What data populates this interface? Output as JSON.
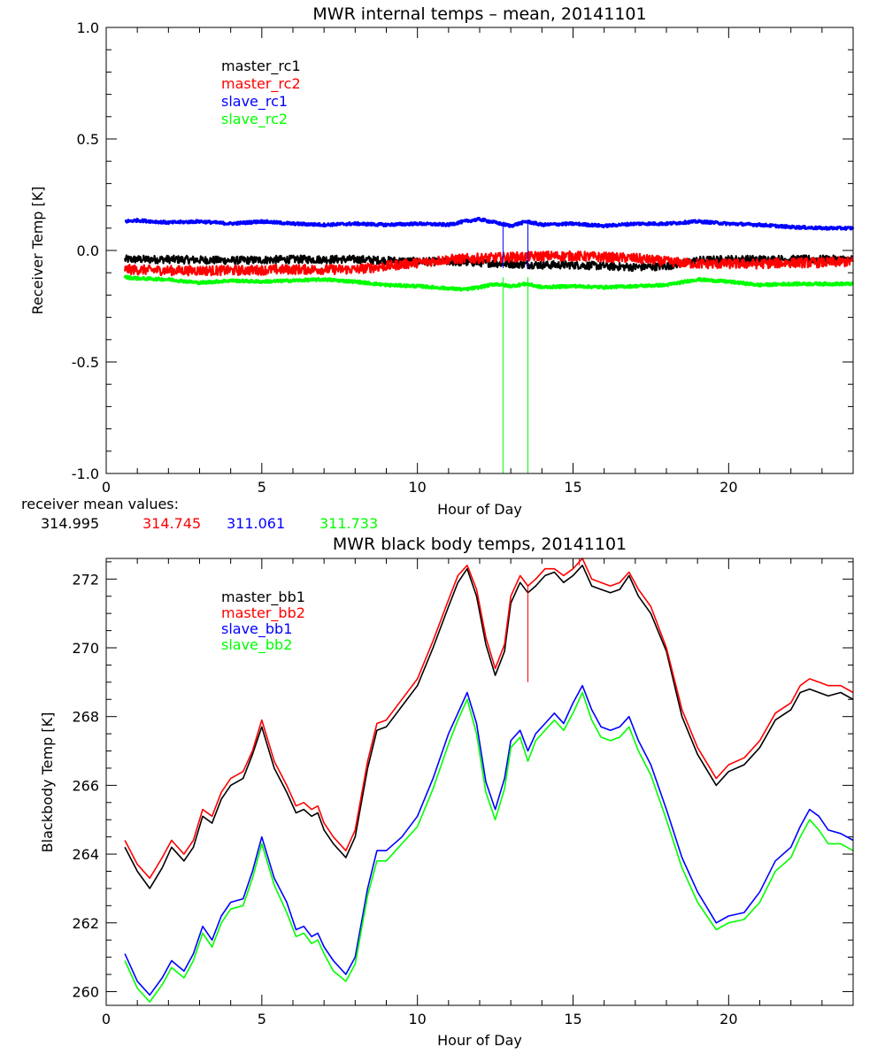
{
  "chart_data": [
    {
      "type": "line",
      "title": "MWR internal temps – mean, 20141101",
      "xlabel": "Hour of Day",
      "ylabel": "Receiver Temp [K]",
      "xlim": [
        0,
        24
      ],
      "ylim": [
        -1.0,
        1.0
      ],
      "xticks": [
        0,
        5,
        10,
        15,
        20
      ],
      "xtick_labels": [
        "0",
        "5",
        "10",
        "15",
        "20"
      ],
      "yticks": [
        -1.0,
        -0.5,
        0.0,
        0.5,
        1.0
      ],
      "ytick_labels": [
        "-1.0",
        "-0.5",
        "0.0",
        "0.5",
        "1.0"
      ],
      "legend_position": "top-left",
      "series": [
        {
          "name": "master_rc1",
          "color": "#000000",
          "noise": 0.018,
          "spikes": [],
          "x": [
            0.6,
            2,
            4,
            6,
            8,
            9,
            10,
            11,
            12,
            13,
            14,
            15,
            16,
            17,
            18,
            19,
            20,
            21,
            22,
            23,
            24
          ],
          "y": [
            -0.04,
            -0.04,
            -0.045,
            -0.04,
            -0.04,
            -0.045,
            -0.05,
            -0.05,
            -0.055,
            -0.06,
            -0.065,
            -0.065,
            -0.07,
            -0.075,
            -0.07,
            -0.045,
            -0.04,
            -0.04,
            -0.04,
            -0.04,
            -0.04
          ]
        },
        {
          "name": "master_rc2",
          "color": "#ff0000",
          "noise": 0.022,
          "spikes": [],
          "x": [
            0.6,
            2,
            4,
            6,
            8,
            9,
            10,
            11,
            12,
            13,
            14,
            15,
            16,
            17,
            18,
            19,
            20,
            21,
            22,
            23,
            24
          ],
          "y": [
            -0.085,
            -0.09,
            -0.09,
            -0.085,
            -0.085,
            -0.07,
            -0.055,
            -0.04,
            -0.035,
            -0.03,
            -0.025,
            -0.025,
            -0.03,
            -0.035,
            -0.05,
            -0.06,
            -0.06,
            -0.06,
            -0.055,
            -0.055,
            -0.05
          ]
        },
        {
          "name": "slave_rc1",
          "color": "#0000ff",
          "noise": 0.006,
          "spikes": [
            12.75,
            13.55
          ],
          "x": [
            0.6,
            1,
            2,
            3,
            4,
            5,
            6,
            7,
            8,
            9,
            10,
            11,
            11.5,
            12,
            12.5,
            13,
            13.5,
            14,
            15,
            16,
            17,
            18,
            19,
            20,
            21,
            22,
            23,
            24
          ],
          "y": [
            0.13,
            0.135,
            0.125,
            0.13,
            0.12,
            0.13,
            0.12,
            0.115,
            0.12,
            0.115,
            0.12,
            0.115,
            0.13,
            0.14,
            0.125,
            0.11,
            0.13,
            0.115,
            0.12,
            0.11,
            0.12,
            0.12,
            0.13,
            0.12,
            0.115,
            0.105,
            0.1,
            0.1
          ]
        },
        {
          "name": "slave_rc2",
          "color": "#00ff00",
          "noise": 0.006,
          "spikes": [
            12.75,
            13.55
          ],
          "x": [
            0.6,
            1,
            2,
            3,
            4,
            5,
            6,
            7,
            8,
            9,
            10,
            11,
            11.5,
            12,
            12.5,
            13,
            13.5,
            14,
            15,
            16,
            17,
            18,
            19,
            20,
            21,
            22,
            23,
            24
          ],
          "y": [
            -0.12,
            -0.125,
            -0.13,
            -0.145,
            -0.135,
            -0.14,
            -0.135,
            -0.13,
            -0.14,
            -0.155,
            -0.16,
            -0.17,
            -0.175,
            -0.165,
            -0.15,
            -0.16,
            -0.15,
            -0.165,
            -0.16,
            -0.165,
            -0.16,
            -0.155,
            -0.13,
            -0.14,
            -0.155,
            -0.15,
            -0.15,
            -0.15
          ]
        }
      ],
      "annotations": {
        "label": "receiver mean values:",
        "values": [
          {
            "text": "314.995",
            "color": "#000000"
          },
          {
            "text": "314.745",
            "color": "#ff0000"
          },
          {
            "text": "311.061",
            "color": "#0000ff"
          },
          {
            "text": "311.733",
            "color": "#00ff00"
          }
        ]
      }
    },
    {
      "type": "line",
      "title": "MWR black body temps, 20141101",
      "xlabel": "Hour of Day",
      "ylabel": "Blackbody Temp [K]",
      "xlim": [
        0,
        24
      ],
      "ylim": [
        259.6,
        272.6
      ],
      "xticks": [
        0,
        5,
        10,
        15,
        20
      ],
      "xtick_labels": [
        "0",
        "5",
        "10",
        "15",
        "20"
      ],
      "yticks": [
        260,
        262,
        264,
        266,
        268,
        270,
        272
      ],
      "ytick_labels": [
        "260",
        "262",
        "264",
        "266",
        "268",
        "270",
        "272"
      ],
      "legend_position": "top-left",
      "x": [
        0.6,
        1.0,
        1.4,
        1.8,
        2.1,
        2.5,
        2.8,
        3.1,
        3.4,
        3.7,
        4.0,
        4.4,
        4.7,
        5.0,
        5.4,
        5.8,
        6.1,
        6.35,
        6.6,
        6.8,
        7.0,
        7.3,
        7.7,
        8.0,
        8.4,
        8.7,
        9.0,
        9.5,
        10.0,
        10.5,
        11.0,
        11.3,
        11.6,
        11.9,
        12.2,
        12.5,
        12.8,
        13.0,
        13.3,
        13.55,
        13.8,
        14.1,
        14.4,
        14.7,
        15.0,
        15.3,
        15.6,
        15.9,
        16.2,
        16.5,
        16.8,
        17.1,
        17.5,
        18.0,
        18.5,
        19.0,
        19.6,
        20.0,
        20.5,
        21.0,
        21.5,
        22.0,
        22.3,
        22.6,
        22.9,
        23.2,
        23.6,
        24.0
      ],
      "series": [
        {
          "name": "master_bb1",
          "color": "#000000",
          "spikes": [],
          "y": [
            264.2,
            263.5,
            263.0,
            263.6,
            264.2,
            263.8,
            264.2,
            265.1,
            264.9,
            265.6,
            266.0,
            266.2,
            266.9,
            267.7,
            266.5,
            265.8,
            265.2,
            265.3,
            265.1,
            265.2,
            264.7,
            264.3,
            263.9,
            264.5,
            266.5,
            267.6,
            267.7,
            268.3,
            268.9,
            270.0,
            271.2,
            271.9,
            272.3,
            271.5,
            270.1,
            269.2,
            269.9,
            271.3,
            271.9,
            271.6,
            271.8,
            272.1,
            272.2,
            271.9,
            272.1,
            272.4,
            271.8,
            271.7,
            271.6,
            271.7,
            272.1,
            271.5,
            271.0,
            269.9,
            268.0,
            266.9,
            266.0,
            266.4,
            266.6,
            267.1,
            267.9,
            268.2,
            268.7,
            268.8,
            268.7,
            268.6,
            268.7,
            268.5
          ]
        },
        {
          "name": "master_bb2",
          "color": "#ff0000",
          "spikes": [
            [
              13.55,
              269.0,
              271.8
            ],
            [
              15.2,
              272.4,
              272.6
            ]
          ],
          "y": [
            264.4,
            263.7,
            263.3,
            263.9,
            264.4,
            264.0,
            264.4,
            265.3,
            265.1,
            265.8,
            266.2,
            266.4,
            267.0,
            267.9,
            266.7,
            266.0,
            265.4,
            265.5,
            265.3,
            265.4,
            264.9,
            264.5,
            264.1,
            264.7,
            266.7,
            267.8,
            267.9,
            268.5,
            269.1,
            270.2,
            271.4,
            272.1,
            272.4,
            271.7,
            270.3,
            269.4,
            270.1,
            271.5,
            272.1,
            271.8,
            272.0,
            272.3,
            272.3,
            272.1,
            272.3,
            272.6,
            272.0,
            271.9,
            271.8,
            271.9,
            272.2,
            271.7,
            271.2,
            270.0,
            268.2,
            267.1,
            266.2,
            266.6,
            266.8,
            267.3,
            268.1,
            268.4,
            268.9,
            269.1,
            269.0,
            268.9,
            268.9,
            268.7
          ]
        },
        {
          "name": "slave_bb1",
          "color": "#0000ff",
          "spikes": [],
          "y": [
            261.1,
            260.3,
            259.9,
            260.4,
            260.9,
            260.6,
            261.1,
            261.9,
            261.5,
            262.2,
            262.6,
            262.7,
            263.5,
            264.5,
            263.3,
            262.6,
            261.8,
            261.9,
            261.6,
            261.7,
            261.3,
            260.9,
            260.5,
            261.0,
            263.0,
            264.1,
            264.1,
            264.5,
            265.1,
            266.2,
            267.5,
            268.1,
            268.7,
            267.8,
            266.1,
            265.3,
            266.2,
            267.3,
            267.6,
            267.0,
            267.5,
            267.8,
            268.1,
            267.8,
            268.4,
            268.9,
            268.2,
            267.7,
            267.6,
            267.7,
            268.0,
            267.3,
            266.6,
            265.3,
            263.9,
            262.9,
            262.0,
            262.2,
            262.3,
            262.9,
            263.8,
            264.2,
            264.8,
            265.3,
            265.1,
            264.7,
            264.6,
            264.4
          ]
        },
        {
          "name": "slave_bb2",
          "color": "#00ff00",
          "spikes": [],
          "y": [
            260.9,
            260.1,
            259.7,
            260.2,
            260.7,
            260.4,
            260.9,
            261.7,
            261.3,
            262.0,
            262.4,
            262.5,
            263.3,
            264.3,
            263.1,
            262.3,
            261.6,
            261.7,
            261.4,
            261.5,
            261.1,
            260.6,
            260.3,
            260.8,
            262.8,
            263.8,
            263.8,
            264.3,
            264.8,
            265.9,
            267.2,
            267.9,
            268.5,
            267.5,
            265.8,
            265.0,
            265.9,
            267.1,
            267.4,
            266.7,
            267.3,
            267.6,
            267.9,
            267.6,
            268.1,
            268.7,
            267.9,
            267.4,
            267.3,
            267.4,
            267.7,
            267.0,
            266.3,
            265.0,
            263.6,
            262.6,
            261.8,
            262.0,
            262.1,
            262.6,
            263.5,
            263.9,
            264.5,
            265.0,
            264.7,
            264.3,
            264.3,
            264.1
          ]
        }
      ]
    }
  ]
}
